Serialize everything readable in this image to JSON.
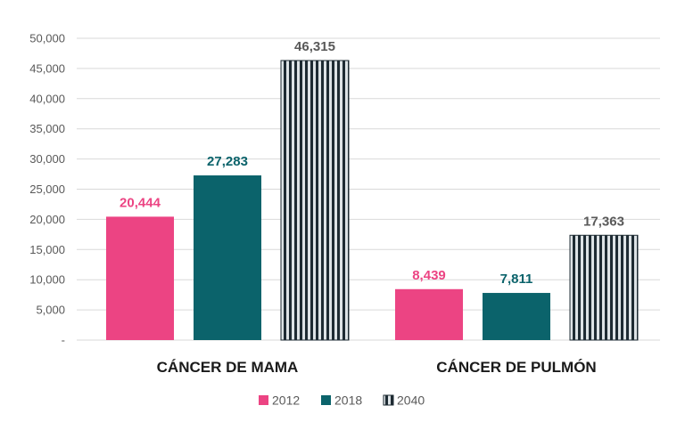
{
  "chart_data": {
    "type": "bar",
    "categories": [
      "CÁNCER DE MAMA",
      "CÁNCER DE PULMÓN"
    ],
    "series": [
      {
        "name": "2012",
        "values": [
          20444,
          8439
        ],
        "labels": [
          "20,444",
          "8,439"
        ]
      },
      {
        "name": "2018",
        "values": [
          27283,
          7811
        ],
        "labels": [
          "27,283",
          "7,811"
        ]
      },
      {
        "name": "2040",
        "values": [
          46315,
          17363
        ],
        "labels": [
          "46,315",
          "17,363"
        ]
      }
    ],
    "y_ticks": [
      "-",
      "5,000",
      "10,000",
      "15,000",
      "20,000",
      "25,000",
      "30,000",
      "35,000",
      "40,000",
      "45,000",
      "50,000"
    ],
    "ylim": [
      0,
      50000
    ],
    "grid": true,
    "legend_position": "bottom",
    "colors": {
      "2012": "#ec4483",
      "2018": "#0b636b",
      "2040_stripe_dark": "#1e2b33",
      "2040_stripe_light": "#dde3e6",
      "label_2040": "#595959"
    },
    "title": "",
    "xlabel": "",
    "ylabel": ""
  }
}
